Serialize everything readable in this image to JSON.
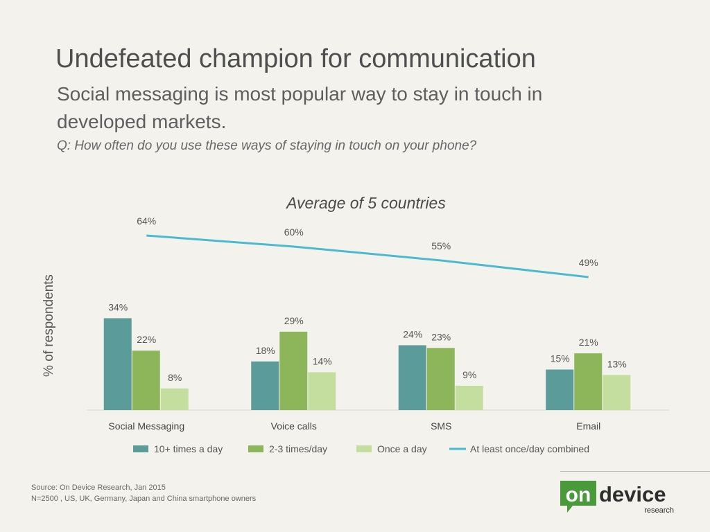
{
  "header": {
    "title": "Undefeated champion for communication",
    "subtitle": "Social messaging is most popular way to stay in touch in developed markets.",
    "question": "Q: How often do you use these ways of staying in touch on your phone?"
  },
  "footer": {
    "source_line1": "Source: On Device Research, Jan 2015",
    "source_line2": "N=2500 , US, UK, Germany, Japan and China smartphone owners"
  },
  "logo": {
    "text_on": "on",
    "text_device": "device",
    "text_research": "research",
    "accent_color": "#4a9a3c"
  },
  "chart_data": {
    "type": "bar",
    "title": "Average of 5 countries",
    "ylabel": "% of respondents",
    "xlabel": "",
    "categories": [
      "Social Messaging",
      "Voice calls",
      "SMS",
      "Email"
    ],
    "series": [
      {
        "name": "10+ times a day",
        "type": "bar",
        "color": "#5b9b9a",
        "values": [
          34,
          18,
          24,
          15
        ],
        "labels": [
          "34%",
          "18%",
          "24%",
          "15%"
        ]
      },
      {
        "name": "2-3 times/day",
        "type": "bar",
        "color": "#8db55a",
        "values": [
          22,
          29,
          23,
          21
        ],
        "labels": [
          "22%",
          "29%",
          "23%",
          "21%"
        ]
      },
      {
        "name": "Once a day",
        "type": "bar",
        "color": "#c4dea0",
        "values": [
          8,
          14,
          9,
          13
        ],
        "labels": [
          "8%",
          "14%",
          "9%",
          "13%"
        ]
      },
      {
        "name": "At least once/day combined",
        "type": "line",
        "color": "#4bbad0",
        "values": [
          64,
          60,
          55,
          49
        ],
        "labels": [
          "64%",
          "60%",
          "55%",
          "49%"
        ]
      }
    ],
    "legend_position": "bottom",
    "grid": false
  }
}
